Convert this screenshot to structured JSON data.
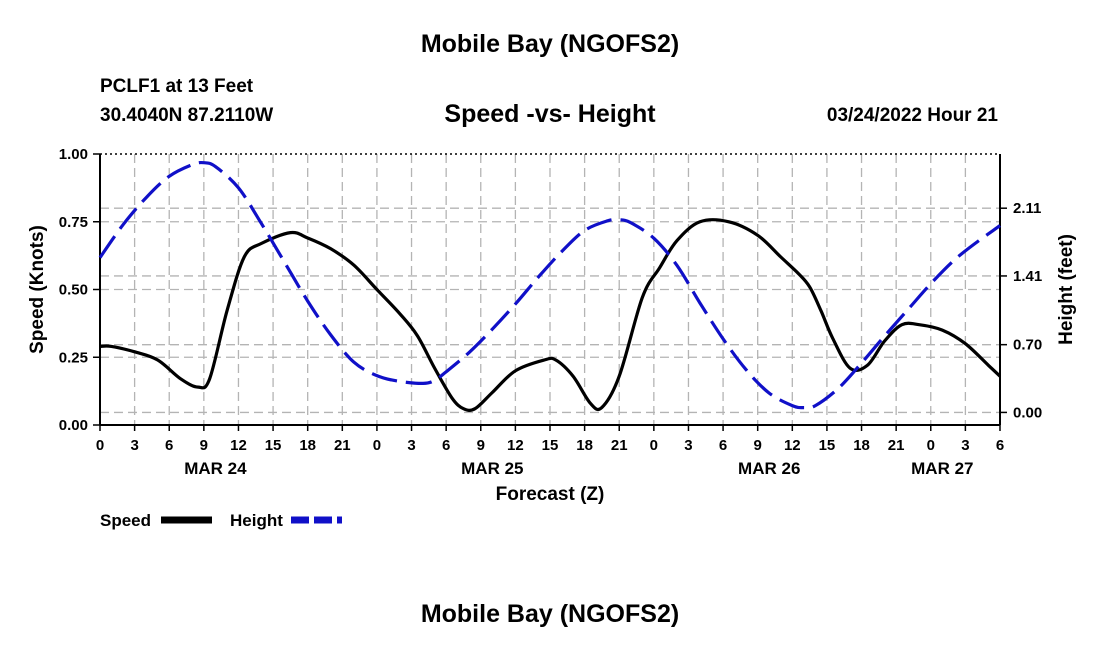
{
  "header": {
    "title": "Mobile Bay (NGOFS2)",
    "station": "PCLF1 at 13 Feet",
    "coords": "30.4040N  87.2110W",
    "subtitle": "Speed -vs- Height",
    "timestamp": "03/24/2022 Hour 21"
  },
  "footer": {
    "title": "Mobile Bay (NGOFS2)"
  },
  "chart_data": {
    "type": "line",
    "xlabel": "Forecast (Z)",
    "ylabel": "Speed (Knots)",
    "y2label": "Height (feet)",
    "x_range": [
      0,
      78
    ],
    "ylim": [
      0,
      1
    ],
    "y2lim": [
      -0.13,
      2.67
    ],
    "y_ticks": [
      0,
      0.25,
      0.5,
      0.75,
      1.0
    ],
    "y_tick_labels": [
      "0.00",
      "0.25",
      "0.50",
      "0.75",
      "1.00"
    ],
    "y2_ticks": [
      0,
      0.7,
      1.41,
      2.11
    ],
    "y2_tick_labels": [
      "0.00",
      "0.70",
      "1.41",
      "2.11"
    ],
    "x_ticks": [
      0,
      3,
      6,
      9,
      12,
      15,
      18,
      21,
      24,
      27,
      30,
      33,
      36,
      39,
      42,
      45,
      48,
      51,
      54,
      57,
      60,
      63,
      66,
      69,
      72,
      75,
      78
    ],
    "x_tick_labels": [
      "0",
      "3",
      "6",
      "9",
      "12",
      "15",
      "18",
      "21",
      "0",
      "3",
      "6",
      "9",
      "12",
      "15",
      "18",
      "21",
      "0",
      "3",
      "6",
      "9",
      "12",
      "15",
      "18",
      "21",
      "0",
      "3",
      "6"
    ],
    "date_labels": [
      {
        "x": 10,
        "text": "MAR 24"
      },
      {
        "x": 34,
        "text": "MAR 25"
      },
      {
        "x": 58,
        "text": "MAR 26"
      },
      {
        "x": 73,
        "text": "MAR 27"
      }
    ],
    "legend": {
      "position": "bottom-left",
      "entries": [
        "Speed",
        "Height"
      ]
    },
    "series": [
      {
        "name": "Speed",
        "axis": "left",
        "color": "#000000",
        "style": "solid",
        "x": [
          0,
          1,
          3,
          5,
          7,
          8.5,
          9.5,
          11,
          12.5,
          14,
          16.5,
          18,
          20,
          22,
          24,
          26,
          27.5,
          29,
          30.5,
          31.5,
          32.5,
          34,
          36,
          38.5,
          39.5,
          41,
          42.5,
          43.5,
          45,
          47,
          48.5,
          50,
          52,
          54.5,
          57,
          59,
          60.5,
          61.5,
          62.5,
          63.5,
          65,
          66.5,
          68,
          69.5,
          71,
          73,
          75,
          77,
          78
        ],
        "values": [
          0.29,
          0.29,
          0.27,
          0.24,
          0.17,
          0.14,
          0.17,
          0.42,
          0.62,
          0.67,
          0.71,
          0.69,
          0.65,
          0.59,
          0.5,
          0.41,
          0.33,
          0.21,
          0.1,
          0.06,
          0.06,
          0.12,
          0.2,
          0.24,
          0.24,
          0.18,
          0.08,
          0.065,
          0.18,
          0.47,
          0.58,
          0.68,
          0.75,
          0.75,
          0.7,
          0.62,
          0.56,
          0.51,
          0.42,
          0.32,
          0.21,
          0.22,
          0.31,
          0.37,
          0.37,
          0.35,
          0.3,
          0.22,
          0.18
        ]
      },
      {
        "name": "Height",
        "axis": "right",
        "color": "#1010c8",
        "style": "dashed",
        "x": [
          0,
          2,
          4,
          6,
          8,
          9,
          10,
          12,
          14,
          16,
          18,
          20,
          22,
          24,
          26,
          28,
          29,
          30,
          32,
          34,
          36,
          38,
          40,
          42,
          44,
          45,
          46,
          48,
          50,
          52,
          54,
          56,
          58,
          60,
          61,
          62,
          64,
          66,
          68,
          70,
          72,
          74,
          76,
          78
        ],
        "values": [
          1.6,
          1.94,
          2.22,
          2.44,
          2.56,
          2.58,
          2.54,
          2.32,
          1.95,
          1.55,
          1.15,
          0.8,
          0.52,
          0.38,
          0.32,
          0.3,
          0.33,
          0.42,
          0.62,
          0.86,
          1.12,
          1.4,
          1.66,
          1.88,
          1.98,
          1.99,
          1.96,
          1.8,
          1.52,
          1.13,
          0.76,
          0.44,
          0.2,
          0.07,
          0.05,
          0.07,
          0.25,
          0.51,
          0.79,
          1.06,
          1.33,
          1.57,
          1.76,
          1.93
        ]
      }
    ]
  }
}
